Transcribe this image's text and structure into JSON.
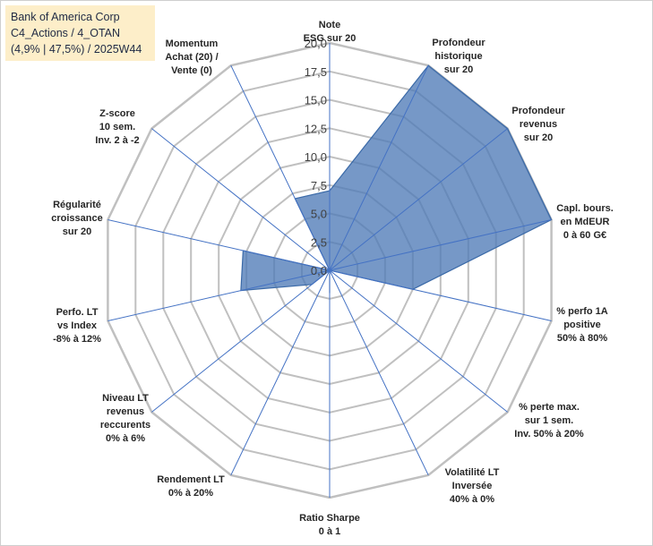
{
  "header": {
    "line1": "Bank of America Corp",
    "line2": "C4_Actions / 4_OTAN",
    "line3": "(4,9% | 47,5%) / 2025W44"
  },
  "colors": {
    "fill": "#4f7bb7",
    "stroke": "#3b6aa8",
    "grid": "#c0c0c0",
    "axis": "#4472c4",
    "title_bg": "#fdeec9"
  },
  "chart_data": {
    "type": "radar",
    "rmax": 20,
    "ticks": [
      "0,0",
      "2,5",
      "5,0",
      "7,5",
      "10,0",
      "12,5",
      "15,0",
      "17,5",
      "20,0"
    ],
    "axes": [
      {
        "label": [
          "Note",
          "ESG sur 20"
        ],
        "value": 7.0
      },
      {
        "label": [
          "Profondeur",
          "historique",
          "sur 20"
        ],
        "value": 20.0
      },
      {
        "label": [
          "Profondeur",
          "revenus",
          "sur 20"
        ],
        "value": 20.0
      },
      {
        "label": [
          "Capl. bours.",
          "en MdEUR",
          "0 à 60 G€"
        ],
        "value": 20.0
      },
      {
        "label": [
          "% perfo 1A",
          "positive",
          "50% à 80%"
        ],
        "value": 7.5
      },
      {
        "label": [
          "% perte max.",
          "sur 1 sem.",
          "Inv. 50% à 20%"
        ],
        "value": 0.0
      },
      {
        "label": [
          "Volatilité LT",
          "Inversée",
          "40% à 0%"
        ],
        "value": 0.0
      },
      {
        "label": [
          "Ratio Sharpe",
          "0 à 1"
        ],
        "value": 2.0
      },
      {
        "label": [
          "Rendement LT",
          "0% à 20%"
        ],
        "value": 0.0
      },
      {
        "label": [
          "Niveau LT",
          "revenus",
          "reccurents",
          "0% à 6%"
        ],
        "value": 2.0
      },
      {
        "label": [
          "Perfo. LT",
          "vs Index",
          "-8% à 12%"
        ],
        "value": 8.0
      },
      {
        "label": [
          "Régularité",
          "croissance",
          "sur 20"
        ],
        "value": 7.8
      },
      {
        "label": [
          "Z-score",
          "10 sem.",
          "Inv. 2 à -2"
        ],
        "value": 0.0
      },
      {
        "label": [
          "Momentum",
          "Achat (20) /",
          "Vente (0)"
        ],
        "value": 7.0
      }
    ]
  }
}
